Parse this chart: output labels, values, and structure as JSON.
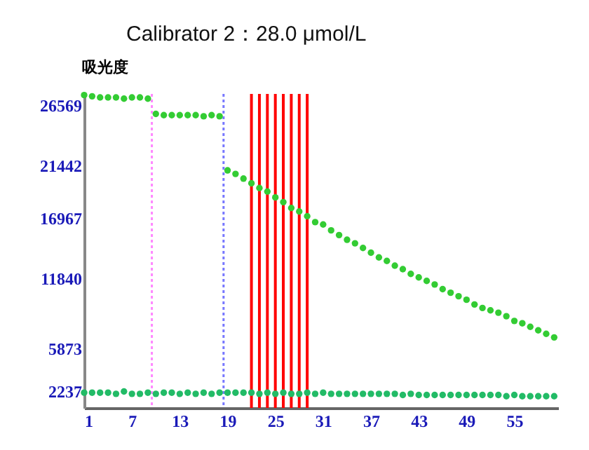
{
  "chart_data": {
    "type": "scatter",
    "title": "Calibrator 2：28.0 μmol/L",
    "ylabel": "吸光度",
    "x": [
      1,
      2,
      3,
      4,
      5,
      6,
      7,
      8,
      9,
      10,
      11,
      12,
      13,
      14,
      15,
      16,
      17,
      18,
      19,
      20,
      21,
      22,
      23,
      24,
      25,
      26,
      27,
      28,
      29,
      30,
      31,
      32,
      33,
      34,
      35,
      36,
      37,
      38,
      39,
      40,
      41,
      42,
      43,
      44,
      45,
      46,
      47,
      48,
      49,
      50,
      51,
      52,
      53,
      54,
      55,
      56,
      57,
      58,
      59,
      60
    ],
    "series": [
      {
        "color": "#33cc33",
        "values": [
          27400,
          27300,
          27200,
          27200,
          27200,
          27100,
          27200,
          27200,
          27100,
          25800,
          25700,
          25700,
          25700,
          25700,
          25700,
          25600,
          25700,
          25600,
          21000,
          20700,
          20300,
          19900,
          19500,
          19200,
          18700,
          18300,
          17800,
          17500,
          17100,
          16600,
          16400,
          15900,
          15500,
          15100,
          14800,
          14400,
          14000,
          13600,
          13300,
          12900,
          12600,
          12200,
          11900,
          11600,
          11300,
          10900,
          10600,
          10300,
          10000,
          9600,
          9300,
          9100,
          8900,
          8600,
          8200,
          8000,
          7700,
          7400,
          7100,
          6800
        ]
      },
      {
        "color": "#22bb66",
        "values": [
          2100,
          2100,
          2100,
          2100,
          2000,
          2200,
          2000,
          2000,
          2100,
          2000,
          2100,
          2100,
          2000,
          2100,
          2000,
          2100,
          2000,
          2100,
          2100,
          2100,
          2100,
          2100,
          2000,
          2100,
          2000,
          2100,
          2000,
          2000,
          2100,
          2000,
          2100,
          2000,
          2000,
          2000,
          2000,
          2000,
          2000,
          2000,
          2000,
          2000,
          1900,
          2000,
          1900,
          1900,
          1900,
          1900,
          1900,
          1900,
          1900,
          1900,
          1900,
          1900,
          1900,
          1800,
          1900,
          1800,
          1800,
          1800,
          1800,
          1800
        ]
      }
    ],
    "xlim": [
      1,
      60.5
    ],
    "xticks": [
      1,
      7,
      13,
      19,
      25,
      31,
      37,
      43,
      49,
      55
    ],
    "ylim": [
      800,
      27500
    ],
    "yticks": [
      2237,
      5873,
      11840,
      16967,
      21442,
      26569
    ],
    "ref_lines": [
      {
        "axis": "x",
        "value": 9.5,
        "color": "#ff88ff",
        "line_style": "dotted"
      },
      {
        "axis": "x",
        "value": 18.5,
        "color": "#7777ff",
        "line_style": "dotted"
      },
      {
        "axis": "x",
        "value": 22,
        "color": "#ff0000",
        "line_style": "solid"
      },
      {
        "axis": "x",
        "value": 23,
        "color": "#ff0000",
        "line_style": "solid"
      },
      {
        "axis": "x",
        "value": 24,
        "color": "#ff0000",
        "line_style": "solid"
      },
      {
        "axis": "x",
        "value": 25,
        "color": "#ff0000",
        "line_style": "solid"
      },
      {
        "axis": "x",
        "value": 26,
        "color": "#ff0000",
        "line_style": "solid"
      },
      {
        "axis": "x",
        "value": 27,
        "color": "#ff0000",
        "line_style": "solid"
      },
      {
        "axis": "x",
        "value": 28,
        "color": "#ff0000",
        "line_style": "solid"
      },
      {
        "axis": "x",
        "value": 29,
        "color": "#ff0000",
        "line_style": "solid"
      }
    ],
    "grid": false,
    "marker": "circle"
  }
}
